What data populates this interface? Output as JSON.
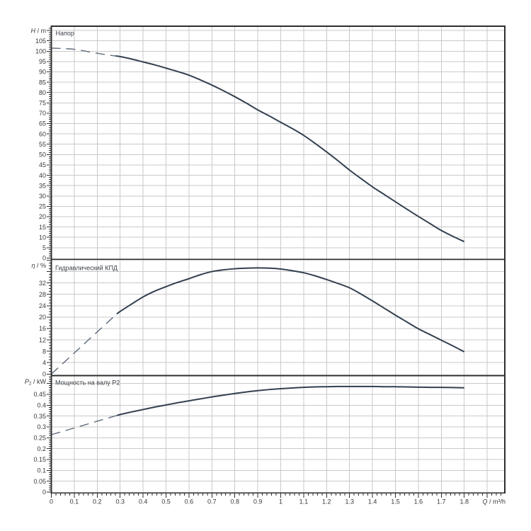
{
  "page": {
    "background": "#ffffff",
    "description": "Pump performance curve chart with three stacked panels sharing a flow axis"
  },
  "colors": {
    "background": "#ffffff",
    "grid": "#c9c9c9",
    "frame": "#2e2e2e",
    "tick": "#2e2e2e",
    "text": "#37393d",
    "curve_solid": "#33404f",
    "curve_dashed": "#5e6c7c"
  },
  "x_axis": {
    "title_symbol": "Q",
    "title_unit": "m³/h",
    "tick_values": [
      0,
      0.1,
      0.2,
      0.3,
      0.4,
      0.5,
      0.6,
      0.7,
      0.8,
      0.9,
      1.0,
      1.1,
      1.2,
      1.3,
      1.4,
      1.5,
      1.6,
      1.7,
      1.8
    ],
    "tick_labels": [
      "0",
      "0.1",
      "0.2",
      "0.3",
      "0.4",
      "0.5",
      "0.6",
      "0.7",
      "0.8",
      "0.9",
      "1",
      "1.1",
      "1.2",
      "1.3",
      "1.4",
      "1.5",
      "1.6",
      "1.7",
      "1.8"
    ],
    "grid_step": 0.1,
    "grid_max": 1.9,
    "minor_step": 0.02,
    "minor_max": 1.96,
    "xlim": [
      0,
      1.977
    ]
  },
  "chart_data": [
    {
      "type": "line",
      "panel": "head",
      "title": "Напор",
      "ylabel_symbol": "H",
      "ylabel_subscript": "",
      "ylabel_unit": "m",
      "xlabel": "Q / m³/h",
      "ylim": [
        0,
        112
      ],
      "grid": true,
      "legend": "none",
      "y_tick_values": [
        0,
        5,
        10,
        15,
        20,
        25,
        30,
        35,
        40,
        45,
        50,
        55,
        60,
        65,
        70,
        75,
        80,
        85,
        90,
        95,
        100,
        105
      ],
      "y_tick_labels": [
        "0",
        "5",
        "10",
        "15",
        "20",
        "25",
        "30",
        "35",
        "40",
        "45",
        "50",
        "55",
        "60",
        "65",
        "70",
        "75",
        "80",
        "85",
        "90",
        "95",
        "100",
        "105"
      ],
      "y_grid_step": 5,
      "y_grid_max": 110,
      "y_major_step": 5,
      "y_major_max": 110,
      "y_minor_step": 1,
      "y_minor_max": 111,
      "dashed_until": 0.28,
      "points": [
        [
          0.0,
          101.5
        ],
        [
          0.05,
          101.3
        ],
        [
          0.1,
          100.9
        ],
        [
          0.15,
          100.0
        ],
        [
          0.2,
          99.0
        ],
        [
          0.25,
          98.1
        ],
        [
          0.28,
          97.7
        ],
        [
          0.3,
          97.4
        ],
        [
          0.35,
          96.2
        ],
        [
          0.4,
          94.8
        ],
        [
          0.45,
          93.4
        ],
        [
          0.5,
          91.8
        ],
        [
          0.55,
          90.2
        ],
        [
          0.6,
          88.4
        ],
        [
          0.65,
          86.1
        ],
        [
          0.7,
          83.6
        ],
        [
          0.75,
          80.9
        ],
        [
          0.8,
          78.0
        ],
        [
          0.85,
          74.9
        ],
        [
          0.9,
          71.6
        ],
        [
          0.95,
          68.7
        ],
        [
          1.0,
          65.6
        ],
        [
          1.05,
          62.6
        ],
        [
          1.1,
          59.3
        ],
        [
          1.15,
          55.4
        ],
        [
          1.2,
          51.3
        ],
        [
          1.25,
          47.0
        ],
        [
          1.3,
          42.5
        ],
        [
          1.35,
          38.4
        ],
        [
          1.4,
          34.4
        ],
        [
          1.45,
          30.8
        ],
        [
          1.5,
          27.2
        ],
        [
          1.55,
          23.6
        ],
        [
          1.6,
          20.1
        ],
        [
          1.65,
          16.7
        ],
        [
          1.7,
          13.3
        ],
        [
          1.75,
          10.5
        ],
        [
          1.8,
          7.9
        ]
      ]
    },
    {
      "type": "line",
      "panel": "efficiency",
      "title": "Гидравлический КПД",
      "ylabel_symbol": "η",
      "ylabel_subscript": "",
      "ylabel_unit": "%",
      "xlabel": "Q / m³/h",
      "ylim": [
        0,
        40.8
      ],
      "grid": true,
      "legend": "none",
      "y_tick_values": [
        0,
        4,
        8,
        12,
        16,
        20,
        24,
        28,
        32
      ],
      "y_tick_labels": [
        "0",
        "4",
        "8",
        "12",
        "16",
        "20",
        "24",
        "28",
        "32"
      ],
      "y_grid_step": 4,
      "y_grid_max": 40,
      "y_major_step": 4,
      "y_major_max": 40,
      "y_minor_step": 1,
      "y_minor_max": 40,
      "dashed_until": 0.285,
      "points": [
        [
          0.0,
          0.0
        ],
        [
          0.1,
          7.4
        ],
        [
          0.2,
          14.8
        ],
        [
          0.285,
          21.1
        ],
        [
          0.3,
          22.0
        ],
        [
          0.35,
          24.6
        ],
        [
          0.4,
          27.1
        ],
        [
          0.45,
          29.1
        ],
        [
          0.5,
          30.7
        ],
        [
          0.55,
          32.2
        ],
        [
          0.6,
          33.5
        ],
        [
          0.65,
          34.9
        ],
        [
          0.7,
          36.0
        ],
        [
          0.75,
          36.6
        ],
        [
          0.8,
          37.0
        ],
        [
          0.85,
          37.2
        ],
        [
          0.9,
          37.3
        ],
        [
          0.95,
          37.2
        ],
        [
          1.0,
          36.9
        ],
        [
          1.05,
          36.3
        ],
        [
          1.1,
          35.6
        ],
        [
          1.15,
          34.5
        ],
        [
          1.2,
          33.2
        ],
        [
          1.25,
          31.8
        ],
        [
          1.3,
          30.3
        ],
        [
          1.35,
          28.1
        ],
        [
          1.4,
          25.7
        ],
        [
          1.45,
          23.2
        ],
        [
          1.5,
          20.7
        ],
        [
          1.55,
          18.3
        ],
        [
          1.6,
          15.9
        ],
        [
          1.65,
          13.9
        ],
        [
          1.7,
          11.9
        ],
        [
          1.75,
          9.9
        ],
        [
          1.8,
          7.8
        ]
      ]
    },
    {
      "type": "line",
      "panel": "power",
      "title": "Мощность на валу P2",
      "ylabel_symbol": "P",
      "ylabel_subscript": "2",
      "ylabel_unit": "kW",
      "xlabel": "Q / m³/h",
      "ylim": [
        0,
        0.5375
      ],
      "grid": true,
      "legend": "none",
      "y_tick_values": [
        0,
        0.05,
        0.1,
        0.15,
        0.2,
        0.25,
        0.3,
        0.35,
        0.4,
        0.45
      ],
      "y_tick_labels": [
        "0",
        "0.05",
        "0.1",
        "0.15",
        "0.2",
        "0.25",
        "0.3",
        "0.35",
        "0.4",
        "0.45"
      ],
      "y_grid_step": 0.05,
      "y_grid_max": 0.5,
      "y_major_step": 0.05,
      "y_major_max": 0.5,
      "y_minor_step": 0.01,
      "y_minor_max": 0.53,
      "dashed_until": 0.287,
      "points": [
        [
          0.0,
          0.264
        ],
        [
          0.1,
          0.295
        ],
        [
          0.2,
          0.326
        ],
        [
          0.287,
          0.353
        ],
        [
          0.3,
          0.357
        ],
        [
          0.35,
          0.369
        ],
        [
          0.4,
          0.38
        ],
        [
          0.45,
          0.391
        ],
        [
          0.5,
          0.401
        ],
        [
          0.55,
          0.411
        ],
        [
          0.6,
          0.42
        ],
        [
          0.65,
          0.429
        ],
        [
          0.7,
          0.438
        ],
        [
          0.75,
          0.446
        ],
        [
          0.8,
          0.454
        ],
        [
          0.85,
          0.461
        ],
        [
          0.9,
          0.467
        ],
        [
          0.95,
          0.472
        ],
        [
          1.0,
          0.476
        ],
        [
          1.05,
          0.479
        ],
        [
          1.1,
          0.482
        ],
        [
          1.15,
          0.484
        ],
        [
          1.2,
          0.485
        ],
        [
          1.25,
          0.486
        ],
        [
          1.3,
          0.486
        ],
        [
          1.35,
          0.486
        ],
        [
          1.4,
          0.486
        ],
        [
          1.45,
          0.485
        ],
        [
          1.5,
          0.485
        ],
        [
          1.55,
          0.484
        ],
        [
          1.6,
          0.483
        ],
        [
          1.65,
          0.482
        ],
        [
          1.7,
          0.482
        ],
        [
          1.75,
          0.481
        ],
        [
          1.8,
          0.48
        ]
      ]
    }
  ]
}
